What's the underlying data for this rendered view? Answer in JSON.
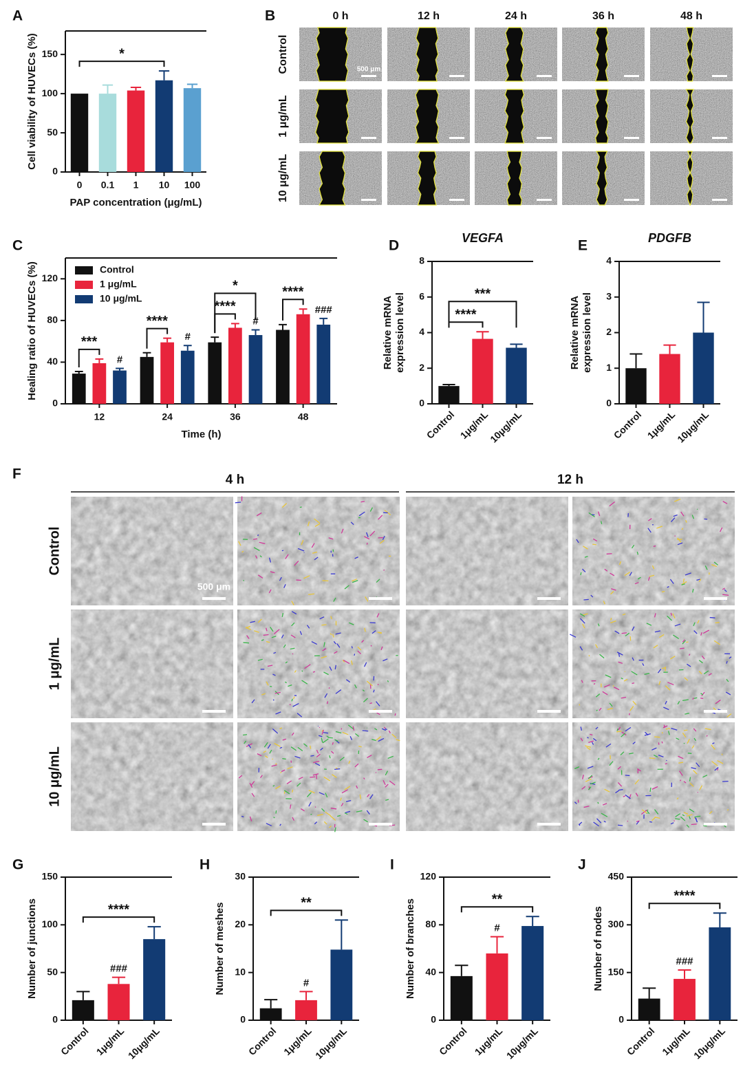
{
  "chart_data": [
    {
      "type": "bar",
      "panel": "A",
      "y_label": [
        "Cell viability of HUVECs (%)"
      ],
      "x_label": "PAP concentration (μg/mL)",
      "categories": [
        "0",
        "0.1",
        "1",
        "10",
        "100"
      ],
      "values": [
        100,
        100,
        104,
        117,
        107
      ],
      "errors": [
        0,
        11,
        4,
        12,
        5
      ],
      "colors": [
        "#111111",
        "#a8dcdc",
        "#e8243c",
        "#123b73",
        "#5aa0d0"
      ],
      "ylim": [
        0,
        180
      ],
      "yticks": [
        0,
        50,
        100,
        150
      ],
      "brackets": [
        {
          "label": "*",
          "from": 0,
          "to": 3
        }
      ]
    },
    {
      "type": "grouped-bar",
      "panel": "C",
      "y_label": [
        "Healing ratio of HUVECs (%)"
      ],
      "x_label": "Time (h)",
      "categories": [
        "12",
        "24",
        "36",
        "48"
      ],
      "legend": "upper left",
      "series": [
        {
          "name": "Control",
          "color": "#111111",
          "values": [
            29,
            45,
            59,
            71
          ],
          "errors": [
            2,
            4,
            5,
            5
          ]
        },
        {
          "name": "1 μg/mL",
          "color": "#e8243c",
          "values": [
            39,
            59,
            73,
            86
          ],
          "errors": [
            4,
            4,
            4,
            5
          ]
        },
        {
          "name": "10 μg/mL",
          "color": "#123b73",
          "values": [
            32,
            51,
            66,
            76
          ],
          "errors": [
            2,
            5,
            5,
            6
          ]
        }
      ],
      "ylim": [
        0,
        140
      ],
      "yticks": [
        0,
        40,
        80,
        120
      ],
      "brackets": [
        {
          "label": "***",
          "group": 0,
          "from": 0,
          "to": 1
        },
        {
          "label": "****",
          "group": 1,
          "from": 0,
          "to": 1
        },
        {
          "label": "****",
          "group": 2,
          "from": 0,
          "to": 1
        },
        {
          "label": "*",
          "group": 2,
          "from": 0,
          "to": 2
        },
        {
          "label": "****",
          "group": 3,
          "from": 0,
          "to": 1
        }
      ],
      "hashes": [
        {
          "label": "#",
          "group": 0,
          "series": 2
        },
        {
          "label": "#",
          "group": 1,
          "series": 2
        },
        {
          "label": "#",
          "group": 2,
          "series": 2
        },
        {
          "label": "###",
          "group": 3,
          "series": 2
        }
      ]
    },
    {
      "type": "bar",
      "panel": "D",
      "title": "VEGFA",
      "y_label": [
        "Relative mRNA",
        "expression level"
      ],
      "categories": [
        "Control",
        "1μg/mL",
        "10μg/mL"
      ],
      "values": [
        1,
        3.65,
        3.15
      ],
      "errors": [
        0.08,
        0.4,
        0.2
      ],
      "colors": [
        "#111111",
        "#e8243c",
        "#123b73"
      ],
      "ylim": [
        0,
        8
      ],
      "yticks": [
        0,
        2,
        4,
        6,
        8
      ],
      "brackets": [
        {
          "label": "****",
          "from": 0,
          "to": 1
        },
        {
          "label": "***",
          "from": 0,
          "to": 2
        }
      ]
    },
    {
      "type": "bar",
      "panel": "E",
      "title": "PDGFB",
      "y_label": [
        "Relative mRNA",
        "expression level"
      ],
      "categories": [
        "Control",
        "1μg/mL",
        "10μg/mL"
      ],
      "values": [
        1,
        1.4,
        2
      ],
      "errors": [
        0.4,
        0.25,
        0.85
      ],
      "colors": [
        "#111111",
        "#e8243c",
        "#123b73"
      ],
      "ylim": [
        0,
        4
      ],
      "yticks": [
        0,
        1,
        2,
        3,
        4
      ]
    },
    {
      "type": "bar",
      "panel": "G",
      "y_label": [
        "Number of junctions"
      ],
      "categories": [
        "Control",
        "1μg/mL",
        "10μg/mL"
      ],
      "values": [
        21,
        38,
        85
      ],
      "errors": [
        9,
        7,
        13
      ],
      "colors": [
        "#111111",
        "#e8243c",
        "#123b73"
      ],
      "ylim": [
        0,
        150
      ],
      "yticks": [
        0,
        50,
        100,
        150
      ],
      "brackets": [
        {
          "label": "****",
          "from": 0,
          "to": 2
        }
      ],
      "hashes": [
        {
          "label": "###",
          "index": 1
        }
      ]
    },
    {
      "type": "bar",
      "panel": "H",
      "y_label": [
        "Number of meshes"
      ],
      "categories": [
        "Control",
        "1μg/mL",
        "10μg/mL"
      ],
      "values": [
        2.5,
        4.2,
        14.8
      ],
      "errors": [
        1.8,
        1.8,
        6.2
      ],
      "colors": [
        "#111111",
        "#e8243c",
        "#123b73"
      ],
      "ylim": [
        0,
        30
      ],
      "yticks": [
        0,
        10,
        20,
        30
      ],
      "brackets": [
        {
          "label": "**",
          "from": 0,
          "to": 2
        }
      ],
      "hashes": [
        {
          "label": "#",
          "index": 1
        }
      ]
    },
    {
      "type": "bar",
      "panel": "I",
      "y_label": [
        "Number of branches"
      ],
      "categories": [
        "Control",
        "1μg/mL",
        "10μg/mL"
      ],
      "values": [
        37,
        56,
        79
      ],
      "errors": [
        9,
        14,
        8
      ],
      "colors": [
        "#111111",
        "#e8243c",
        "#123b73"
      ],
      "ylim": [
        0,
        120
      ],
      "yticks": [
        0,
        40,
        80,
        120
      ],
      "brackets": [
        {
          "label": "**",
          "from": 0,
          "to": 2
        }
      ],
      "hashes": [
        {
          "label": "#",
          "index": 1
        }
      ]
    },
    {
      "type": "bar",
      "panel": "J",
      "y_label": [
        "Number of nodes"
      ],
      "categories": [
        "Control",
        "1μg/mL",
        "10μg/mL"
      ],
      "values": [
        68,
        130,
        292
      ],
      "errors": [
        33,
        28,
        45
      ],
      "colors": [
        "#111111",
        "#e8243c",
        "#123b73"
      ],
      "ylim": [
        0,
        450
      ],
      "yticks": [
        0,
        150,
        300,
        450
      ],
      "brackets": [
        {
          "label": "****",
          "from": 0,
          "to": 2
        }
      ],
      "hashes": [
        {
          "label": "###",
          "index": 1
        }
      ]
    }
  ],
  "image_panels": {
    "B": {
      "panel": "B",
      "columns": [
        "0 h",
        "12 h",
        "24 h",
        "36 h",
        "48 h"
      ],
      "rows": [
        "Control",
        "1 μg/mL",
        "10 μg/mL"
      ],
      "scale_bar": "500 μm"
    },
    "F": {
      "panel": "F",
      "groups": [
        "4 h",
        "12 h"
      ],
      "rows": [
        "Control",
        "1 μg/mL",
        "10 μg/mL"
      ],
      "scale_bar": "500 μm"
    }
  }
}
